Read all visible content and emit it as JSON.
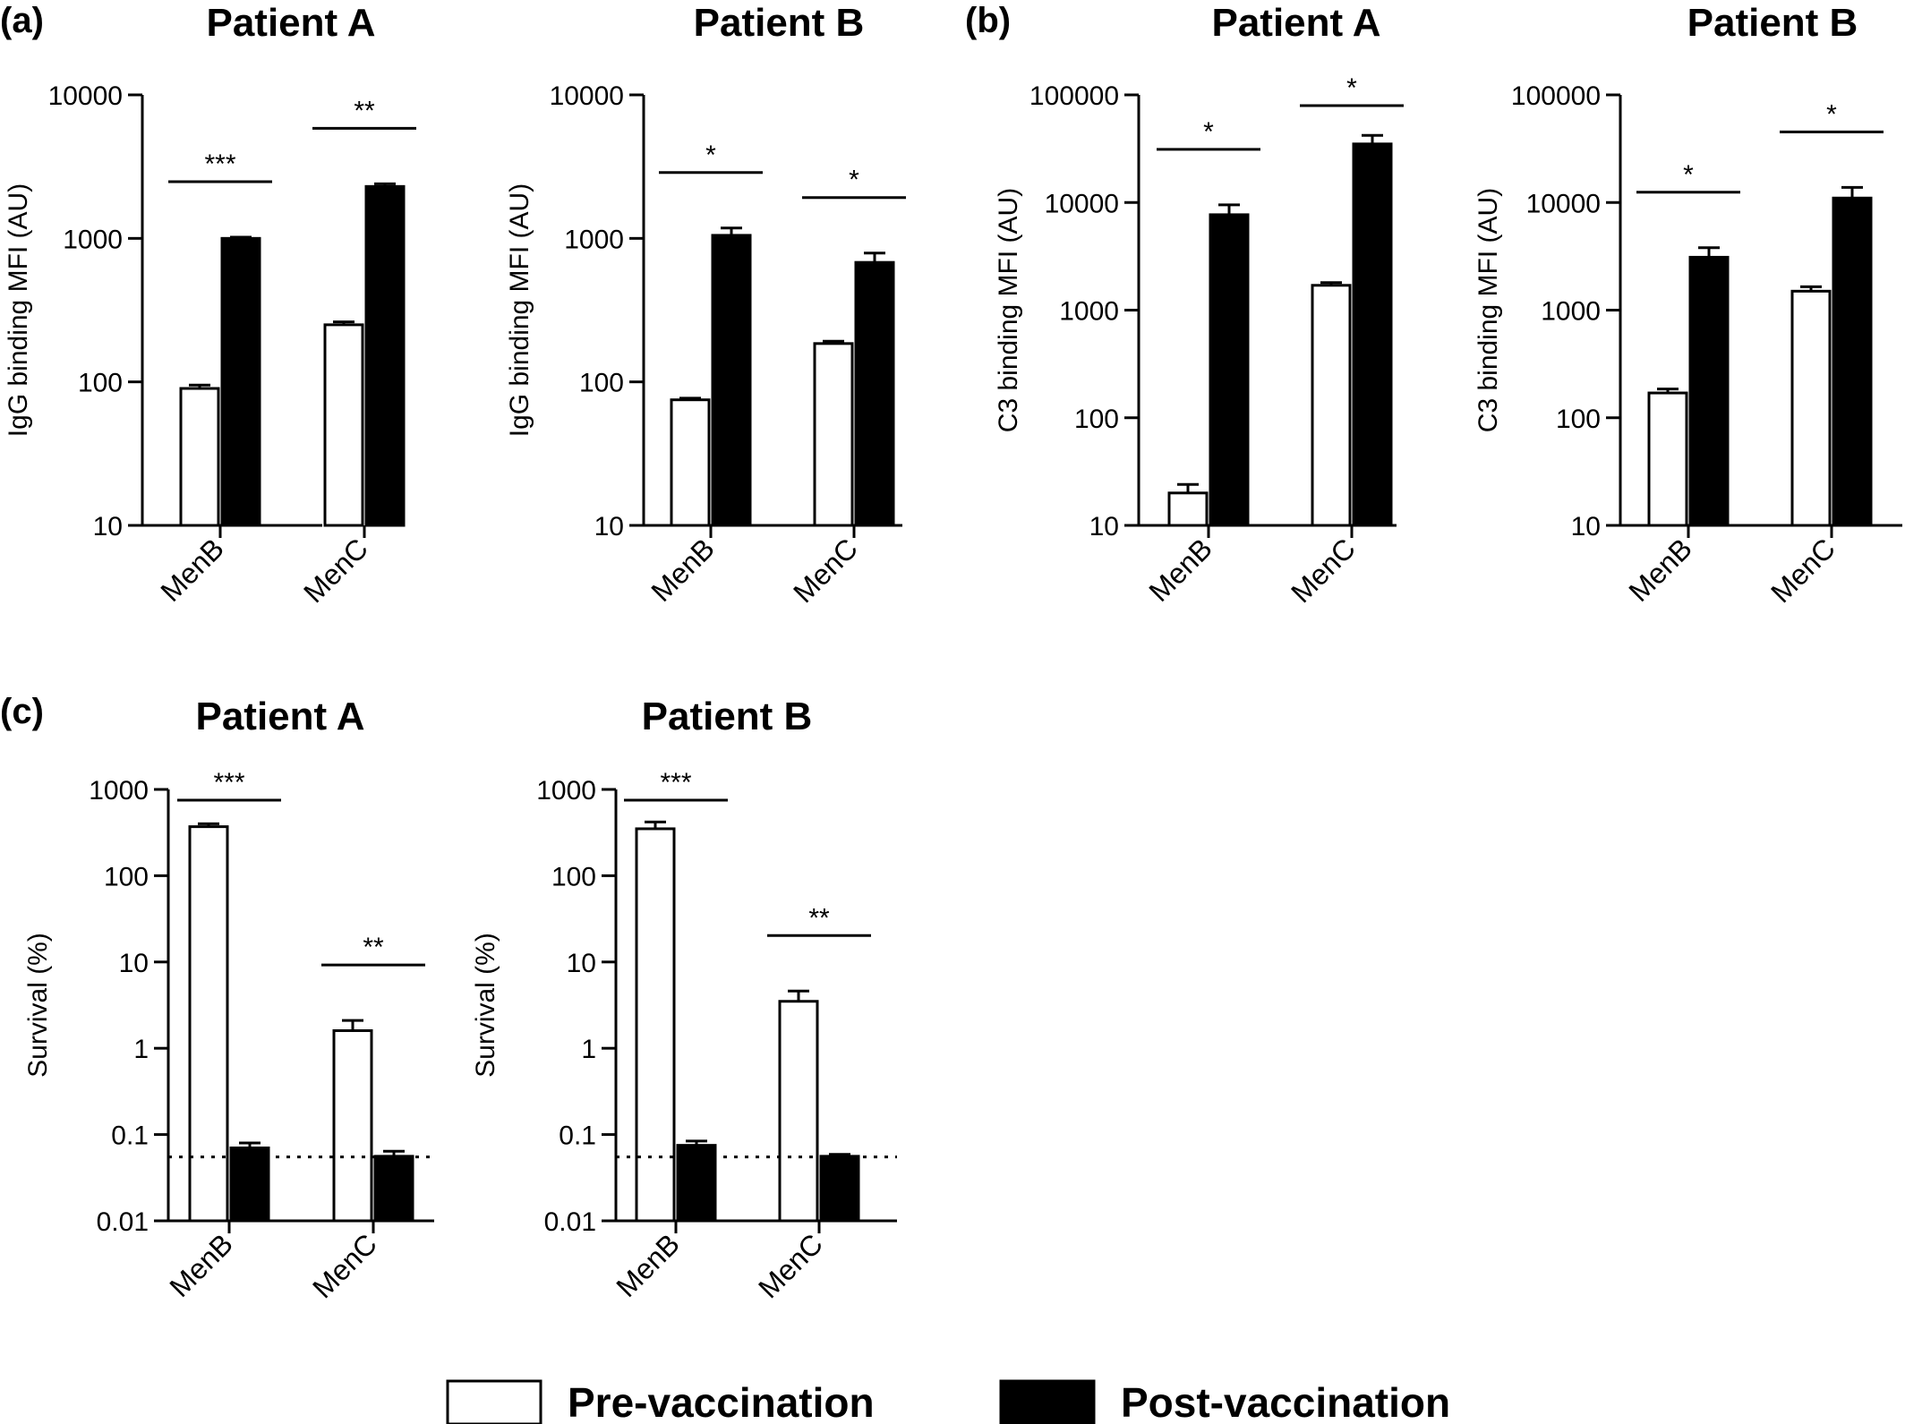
{
  "panel_labels": [
    "(a)",
    "(b)",
    "(c)"
  ],
  "legend": {
    "pre_label": "Pre-vaccination",
    "post_label": "Post-vaccination",
    "pre_color": "#ffffff",
    "post_color": "#000000"
  },
  "chart_data": [
    {
      "panel": "(a)",
      "type": "bar",
      "title": "Patient A",
      "ylabel": "IgG binding MFI (AU)",
      "yscale": "log",
      "ylim": [
        10,
        10000
      ],
      "yticks": [
        10,
        100,
        1000,
        10000
      ],
      "yticklabels": [
        "10",
        "100",
        "1000",
        "10000"
      ],
      "categories": [
        "MenB",
        "MenC"
      ],
      "series": [
        {
          "name": "Pre-vaccination",
          "values": [
            90,
            250
          ],
          "errors": [
            95,
            262
          ]
        },
        {
          "name": "Post-vaccination",
          "values": [
            1000,
            2300
          ],
          "errors": [
            1020,
            2400
          ]
        }
      ],
      "significance": [
        "***",
        "**"
      ],
      "detection_limit": null
    },
    {
      "panel": "(a)",
      "type": "bar",
      "title": "Patient B",
      "ylabel": "IgG binding MFI (AU)",
      "yscale": "log",
      "ylim": [
        10,
        10000
      ],
      "yticks": [
        10,
        100,
        1000,
        10000
      ],
      "yticklabels": [
        "10",
        "100",
        "1000",
        "10000"
      ],
      "categories": [
        "MenB",
        "MenC"
      ],
      "series": [
        {
          "name": "Pre-vaccination",
          "values": [
            75,
            185
          ],
          "errors": [
            77,
            192
          ]
        },
        {
          "name": "Post-vaccination",
          "values": [
            1050,
            680
          ],
          "errors": [
            1180,
            790
          ]
        }
      ],
      "significance": [
        "*",
        "*"
      ],
      "detection_limit": null
    },
    {
      "panel": "(b)",
      "type": "bar",
      "title": "Patient A",
      "ylabel": "C3 binding MFI (AU)",
      "yscale": "log",
      "ylim": [
        10,
        100000
      ],
      "yticks": [
        10,
        100,
        1000,
        10000,
        100000
      ],
      "yticklabels": [
        "10",
        "100",
        "1000",
        "10000",
        "100000"
      ],
      "categories": [
        "MenB",
        "MenC"
      ],
      "series": [
        {
          "name": "Pre-vaccination",
          "values": [
            20,
            1700
          ],
          "errors": [
            24,
            1800
          ]
        },
        {
          "name": "Post-vaccination",
          "values": [
            7700,
            35000
          ],
          "errors": [
            9500,
            42000
          ]
        }
      ],
      "significance": [
        "*",
        "*"
      ],
      "detection_limit": null
    },
    {
      "panel": "(b)",
      "type": "bar",
      "title": "Patient B",
      "ylabel": "C3 binding MFI (AU)",
      "yscale": "log",
      "ylim": [
        10,
        100000
      ],
      "yticks": [
        10,
        100,
        1000,
        10000,
        100000
      ],
      "yticklabels": [
        "10",
        "100",
        "1000",
        "10000",
        "100000"
      ],
      "categories": [
        "MenB",
        "MenC"
      ],
      "series": [
        {
          "name": "Pre-vaccination",
          "values": [
            170,
            1500
          ],
          "errors": [
            185,
            1650
          ]
        },
        {
          "name": "Post-vaccination",
          "values": [
            3100,
            11000
          ],
          "errors": [
            3800,
            13800
          ]
        }
      ],
      "significance": [
        "*",
        "*"
      ],
      "detection_limit": null
    },
    {
      "panel": "(c)",
      "type": "bar",
      "title": "Patient A",
      "ylabel": "Survival (%)",
      "yscale": "log",
      "ylim": [
        0.01,
        1000
      ],
      "yticks": [
        0.01,
        0.1,
        1,
        10,
        100,
        1000
      ],
      "yticklabels": [
        "0.01",
        "0.1",
        "1",
        "10",
        "100",
        "1000"
      ],
      "categories": [
        "MenB",
        "MenC"
      ],
      "series": [
        {
          "name": "Pre-vaccination",
          "values": [
            370,
            1.6
          ],
          "errors": [
            400,
            2.1
          ]
        },
        {
          "name": "Post-vaccination",
          "values": [
            0.07,
            0.056
          ],
          "errors": [
            0.08,
            0.064
          ]
        }
      ],
      "significance": [
        "***",
        "**"
      ],
      "detection_limit": 0.055
    },
    {
      "panel": "(c)",
      "type": "bar",
      "title": "Patient B",
      "ylabel": "Survival (%)",
      "yscale": "log",
      "ylim": [
        0.01,
        1000
      ],
      "yticks": [
        0.01,
        0.1,
        1,
        10,
        100,
        1000
      ],
      "yticklabels": [
        "0.01",
        "0.1",
        "1",
        "10",
        "100",
        "1000"
      ],
      "categories": [
        "MenB",
        "MenC"
      ],
      "series": [
        {
          "name": "Pre-vaccination",
          "values": [
            350,
            3.5
          ],
          "errors": [
            420,
            4.6
          ]
        },
        {
          "name": "Post-vaccination",
          "values": [
            0.075,
            0.056
          ],
          "errors": [
            0.084,
            0.059
          ]
        }
      ],
      "significance": [
        "***",
        "**"
      ],
      "detection_limit": 0.055
    }
  ]
}
